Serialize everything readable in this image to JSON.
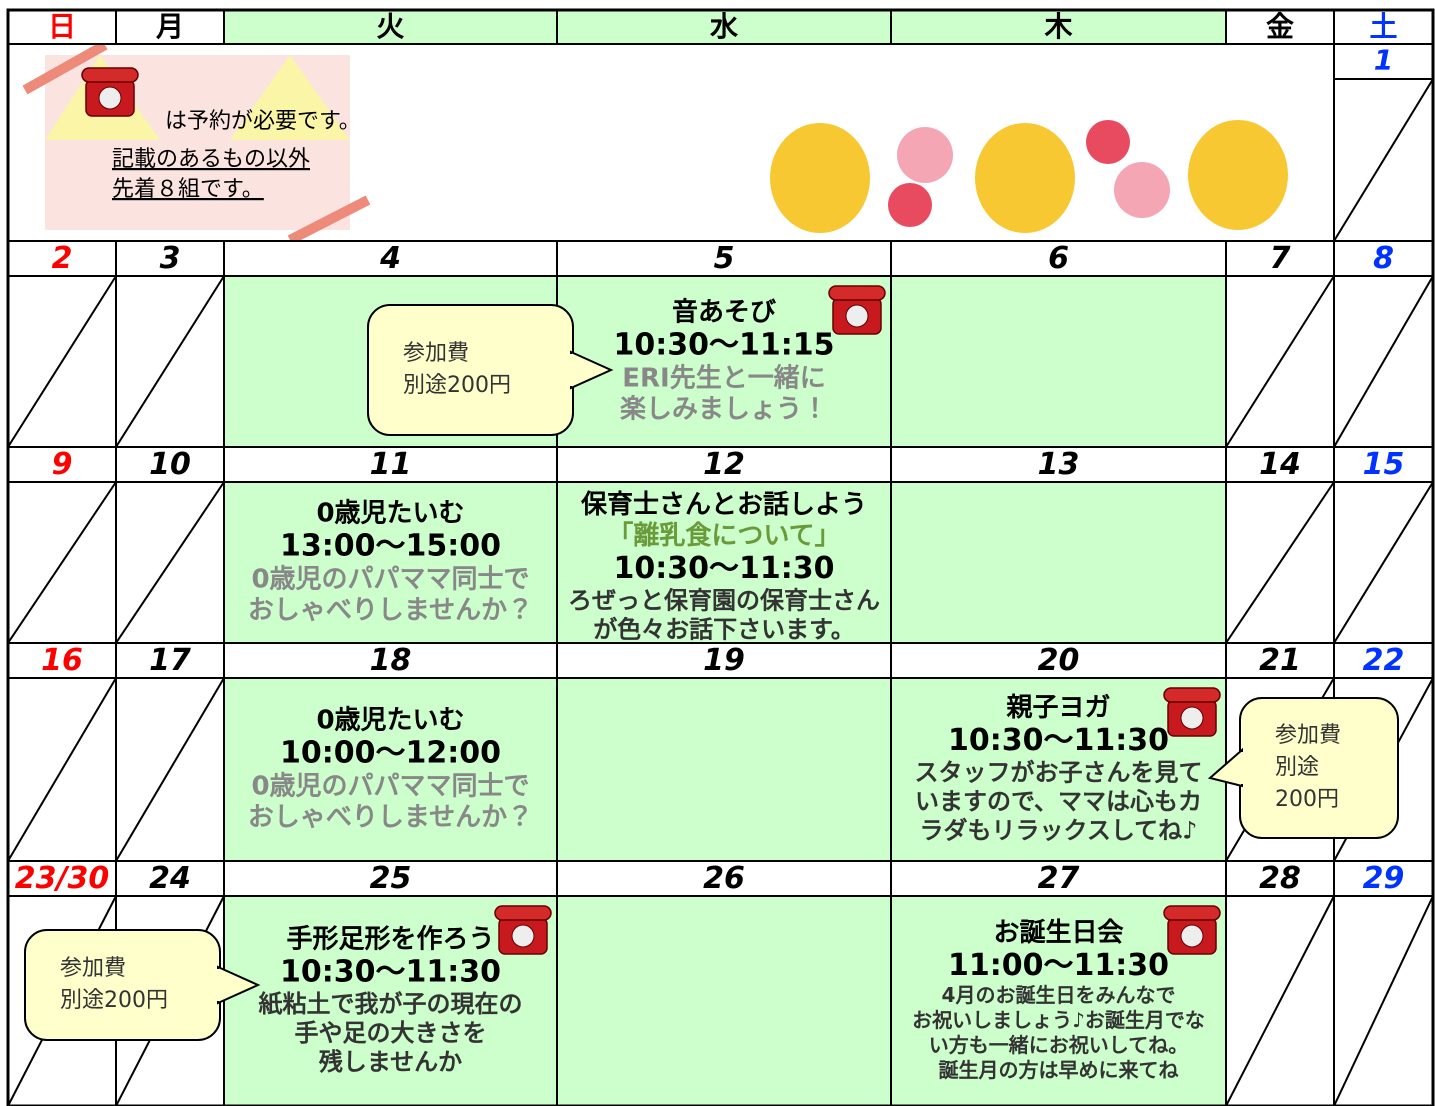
{
  "weekdays": [
    "日",
    "月",
    "火",
    "水",
    "木",
    "金",
    "土"
  ],
  "legend": {
    "text": "は予約が必要です。",
    "note_lines": [
      "記載のあるもの以外",
      "先着８組です。"
    ]
  },
  "weeks": [
    {
      "dates": [
        null,
        null,
        null,
        null,
        null,
        null,
        "1"
      ],
      "cells": [
        null,
        null,
        null,
        null,
        null,
        null,
        null
      ]
    },
    {
      "dates": [
        "2",
        "3",
        "4",
        "5",
        "6",
        "7",
        "8"
      ],
      "cells": [
        null,
        null,
        null,
        {
          "reserve": true,
          "lines": [
            {
              "text": "音あそび",
              "style": "title"
            },
            {
              "text": "10:30～11:15",
              "style": "time"
            },
            {
              "text": "ERI先生と一緒に",
              "style": "desc"
            },
            {
              "text": "楽しみましょう！",
              "style": "desc"
            }
          ]
        },
        null,
        null,
        null
      ],
      "callout": {
        "lines": [
          "参加費",
          "別途200円"
        ]
      }
    },
    {
      "dates": [
        "9",
        "10",
        "11",
        "12",
        "13",
        "14",
        "15"
      ],
      "cells": [
        null,
        null,
        {
          "lines": [
            {
              "text": "0歳児たいむ",
              "style": "title"
            },
            {
              "text": "13:00～15:00",
              "style": "time"
            },
            {
              "text": "0歳児のパパママ同士で",
              "style": "desc"
            },
            {
              "text": "おしゃべりしませんか？",
              "style": "desc"
            }
          ]
        },
        {
          "lines": [
            {
              "text": "保育士さんとお話しよう",
              "style": "title"
            },
            {
              "text": "「離乳食について」",
              "style": "accent"
            },
            {
              "text": "10:30～11:30",
              "style": "time"
            },
            {
              "text": "ろぜっと保育園の保育士さん",
              "style": "dark"
            },
            {
              "text": "が色々お話下さいます。",
              "style": "dark"
            }
          ]
        },
        null,
        null,
        null
      ]
    },
    {
      "dates": [
        "16",
        "17",
        "18",
        "19",
        "20",
        "21",
        "22"
      ],
      "cells": [
        null,
        null,
        {
          "lines": [
            {
              "text": "0歳児たいむ",
              "style": "title"
            },
            {
              "text": "10:00～12:00",
              "style": "time"
            },
            {
              "text": "0歳児のパパママ同士で",
              "style": "desc"
            },
            {
              "text": "おしゃべりしませんか？",
              "style": "desc"
            }
          ]
        },
        null,
        {
          "reserve": true,
          "lines": [
            {
              "text": "親子ヨガ",
              "style": "title"
            },
            {
              "text": "10:30～11:30",
              "style": "time"
            },
            {
              "text": "スタッフがお子さんを見て",
              "style": "dark"
            },
            {
              "text": "いますので、ママは心もカ",
              "style": "dark"
            },
            {
              "text": "ラダもリラックスしてね♪",
              "style": "dark"
            }
          ]
        },
        null,
        null
      ],
      "callout": {
        "lines": [
          "参加費",
          "別途",
          "200円"
        ]
      }
    },
    {
      "dates": [
        "23/30",
        "24",
        "25",
        "26",
        "27",
        "28",
        "29"
      ],
      "cells": [
        null,
        null,
        {
          "reserve": true,
          "lines": [
            {
              "text": "手形足形を作ろう",
              "style": "title"
            },
            {
              "text": "10:30～11:30",
              "style": "time"
            },
            {
              "text": "紙粘土で我が子の現在の",
              "style": "dark"
            },
            {
              "text": "手や足の大きさを",
              "style": "dark"
            },
            {
              "text": "残しませんか",
              "style": "dark"
            }
          ]
        },
        null,
        {
          "reserve": true,
          "lines": [
            {
              "text": "お誕生日会",
              "style": "title"
            },
            {
              "text": "11:00～11:30",
              "style": "time"
            },
            {
              "text": "4月のお誕生日をみんなで",
              "style": "small"
            },
            {
              "text": "お祝いしましょう♪お誕生月でな",
              "style": "small"
            },
            {
              "text": "い方も一緒にお祝いしてね。",
              "style": "small"
            },
            {
              "text": "誕生月の方は早めに来てね",
              "style": "small"
            }
          ]
        },
        null,
        null
      ],
      "callout": {
        "lines": [
          "参加費",
          "別途200円"
        ]
      }
    }
  ]
}
